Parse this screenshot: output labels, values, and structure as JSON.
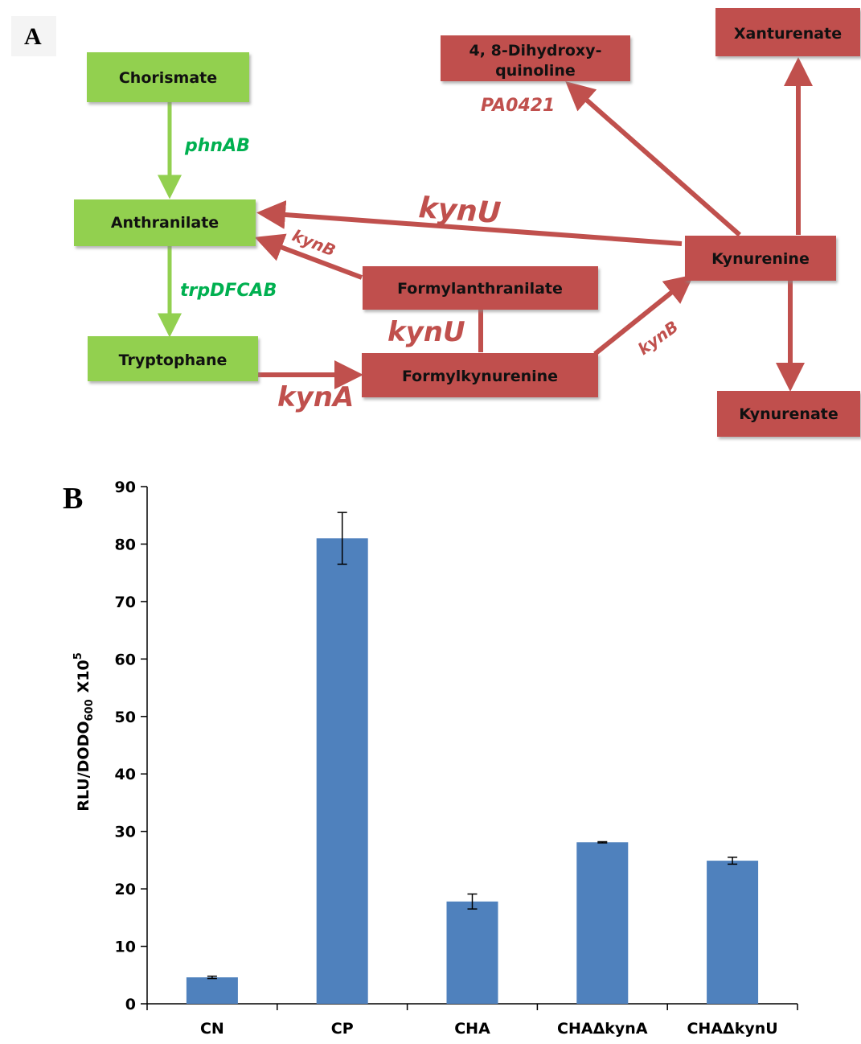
{
  "panel_a": {
    "letter": "A",
    "colors": {
      "green": "#92d050",
      "red": "#c0504d",
      "green_text": "#00b050"
    },
    "nodes": {
      "chorismate": "Chorismate",
      "anthranilate": "Anthranilate",
      "tryptophane": "Tryptophane",
      "dihydroxyquinoline_line1": "4, 8-Dihydroxy-",
      "dihydroxyquinoline_line2": "quinoline",
      "xanturenate": "Xanturenate",
      "kynurenine": "Kynurenine",
      "formylanthranilate": "Formylanthranilate",
      "formylkynurenine": "Formylkynurenine",
      "kynurenate": "Kynurenate"
    },
    "enzymes": {
      "phnAB": "phnAB",
      "trpDFCAB": "trpDFCAB",
      "pa0421": "PA0421",
      "kynU_top": "kynU",
      "kynB_left": "kynB",
      "kynU_mid": "kynU",
      "kynB_right": "kynB",
      "kynA": "kynA"
    }
  },
  "panel_b": {
    "letter": "B"
  },
  "chart_data": {
    "type": "bar",
    "categories": [
      "CN",
      "CP",
      "CHA",
      "CHAΔkynA",
      "CHAΔkynU"
    ],
    "values": [
      4.6,
      81.0,
      17.8,
      28.1,
      24.9
    ],
    "errors": [
      0.2,
      4.5,
      1.3,
      0.1,
      0.6
    ],
    "ylim": [
      0,
      90
    ],
    "yticks": [
      0,
      10,
      20,
      30,
      40,
      50,
      60,
      70,
      80,
      90
    ],
    "ylabel": {
      "main": "RLU/DODO",
      "sub": "600",
      "factor": "X10",
      "sup": "5"
    },
    "bar_color": "#4f81bd",
    "grid": false
  }
}
